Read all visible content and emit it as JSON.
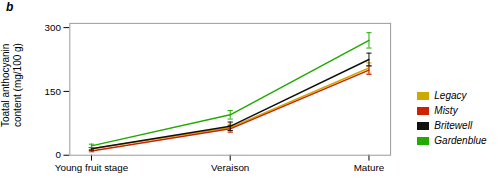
{
  "chart_data": {
    "type": "line",
    "title": "b",
    "ylabel": "Toatal anthocyanin\ncontent (mg/100 g)",
    "categories": [
      "Young fruit stage",
      "Veraison",
      "Mature"
    ],
    "series": [
      {
        "name": "Legacy",
        "color": "#ccaa00",
        "values": [
          15,
          65,
          205
        ],
        "errors": [
          3,
          8,
          12
        ]
      },
      {
        "name": "Misty",
        "color": "#cc2200",
        "values": [
          10,
          62,
          200
        ],
        "errors": [
          2,
          8,
          10
        ]
      },
      {
        "name": "Britewell",
        "color": "#111111",
        "values": [
          15,
          68,
          225
        ],
        "errors": [
          3,
          10,
          15
        ]
      },
      {
        "name": "Gardenblue",
        "color": "#22aa00",
        "values": [
          22,
          95,
          270
        ],
        "errors": [
          4,
          10,
          18
        ]
      }
    ],
    "ylim": [
      0,
      310
    ],
    "yticks": [
      0,
      150,
      300
    ],
    "legend": "lower right"
  }
}
